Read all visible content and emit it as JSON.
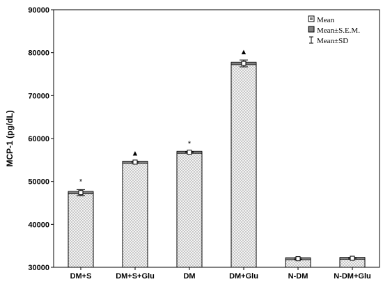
{
  "chart_data": {
    "type": "bar",
    "ylabel": "MCP-1 (pg/dL)",
    "xlabel": "",
    "title": "",
    "ylim": [
      30000,
      90000
    ],
    "yticks": [
      30000,
      40000,
      50000,
      60000,
      70000,
      80000,
      90000
    ],
    "categories": [
      "DM+S",
      "DM+S+Glu",
      "DM",
      "DM+Glu",
      "N-DM",
      "N-DM+Glu"
    ],
    "series": [
      {
        "name": "Mean",
        "values": [
          47400,
          54500,
          56800,
          77500,
          32000,
          32100
        ],
        "sem": [
          300,
          150,
          120,
          300,
          120,
          120
        ],
        "sd": [
          700,
          200,
          150,
          800,
          150,
          150
        ]
      }
    ],
    "annotations": [
      "*",
      "▲",
      "*",
      "▲",
      "",
      ""
    ],
    "legend": {
      "position": "top-right",
      "entries": [
        "Mean",
        "Mean±S.E.M.",
        "Mean±SD"
      ]
    },
    "grid": false,
    "colors": {
      "bar_fill_a": "#c8c8c8",
      "bar_fill_b": "#f4f4f4",
      "sem_box": "#808080",
      "axis": "#000000"
    }
  }
}
